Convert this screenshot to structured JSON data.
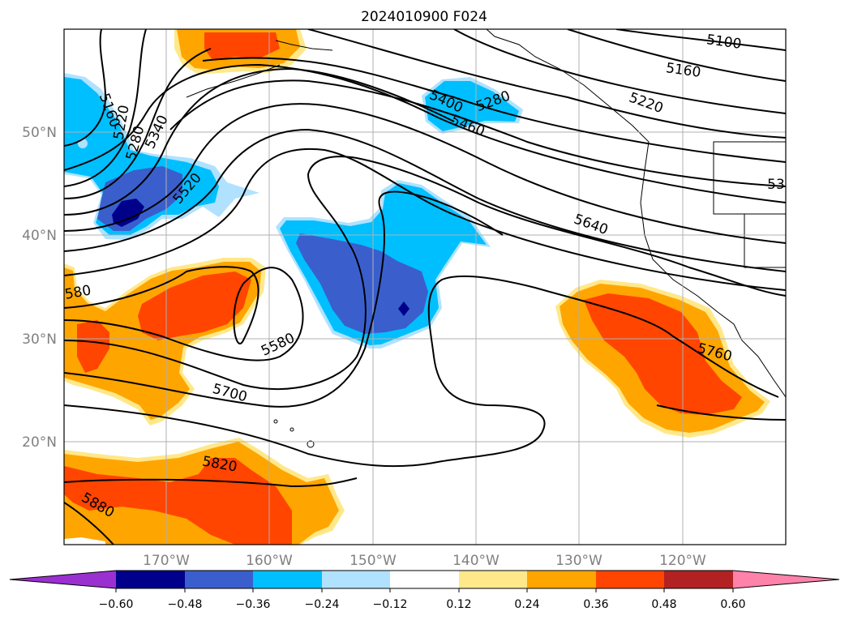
{
  "map": {
    "title": "2024010900 F024",
    "lat_labels": [
      "50°N",
      "40°N",
      "30°N",
      "20°N"
    ],
    "lon_labels": [
      "170°W",
      "160°W",
      "150°W",
      "140°W",
      "130°W",
      "120°W"
    ],
    "contour_labels": [
      "5100",
      "5160",
      "5220",
      "53",
      "5160",
      "5220",
      "5280",
      "5340",
      "5400",
      "5280",
      "5460",
      "5520",
      "5640",
      "580",
      "5580",
      "5760",
      "5700",
      "5820",
      "5880"
    ]
  },
  "colorbar": {
    "ticks": [
      "−0.60",
      "−0.48",
      "−0.36",
      "−0.24",
      "−0.12",
      "0.12",
      "0.24",
      "0.36",
      "0.48",
      "0.60"
    ],
    "colors": [
      "#9b30d0",
      "#00008b",
      "#3a5fcd",
      "#00bfff",
      "#b0e2ff",
      "#ffffff",
      "#ffe88a",
      "#ffa500",
      "#ff4500",
      "#b22222",
      "#ff82ab"
    ]
  },
  "colors": {
    "grid": "#b0b0b0",
    "contour": "#000000"
  }
}
